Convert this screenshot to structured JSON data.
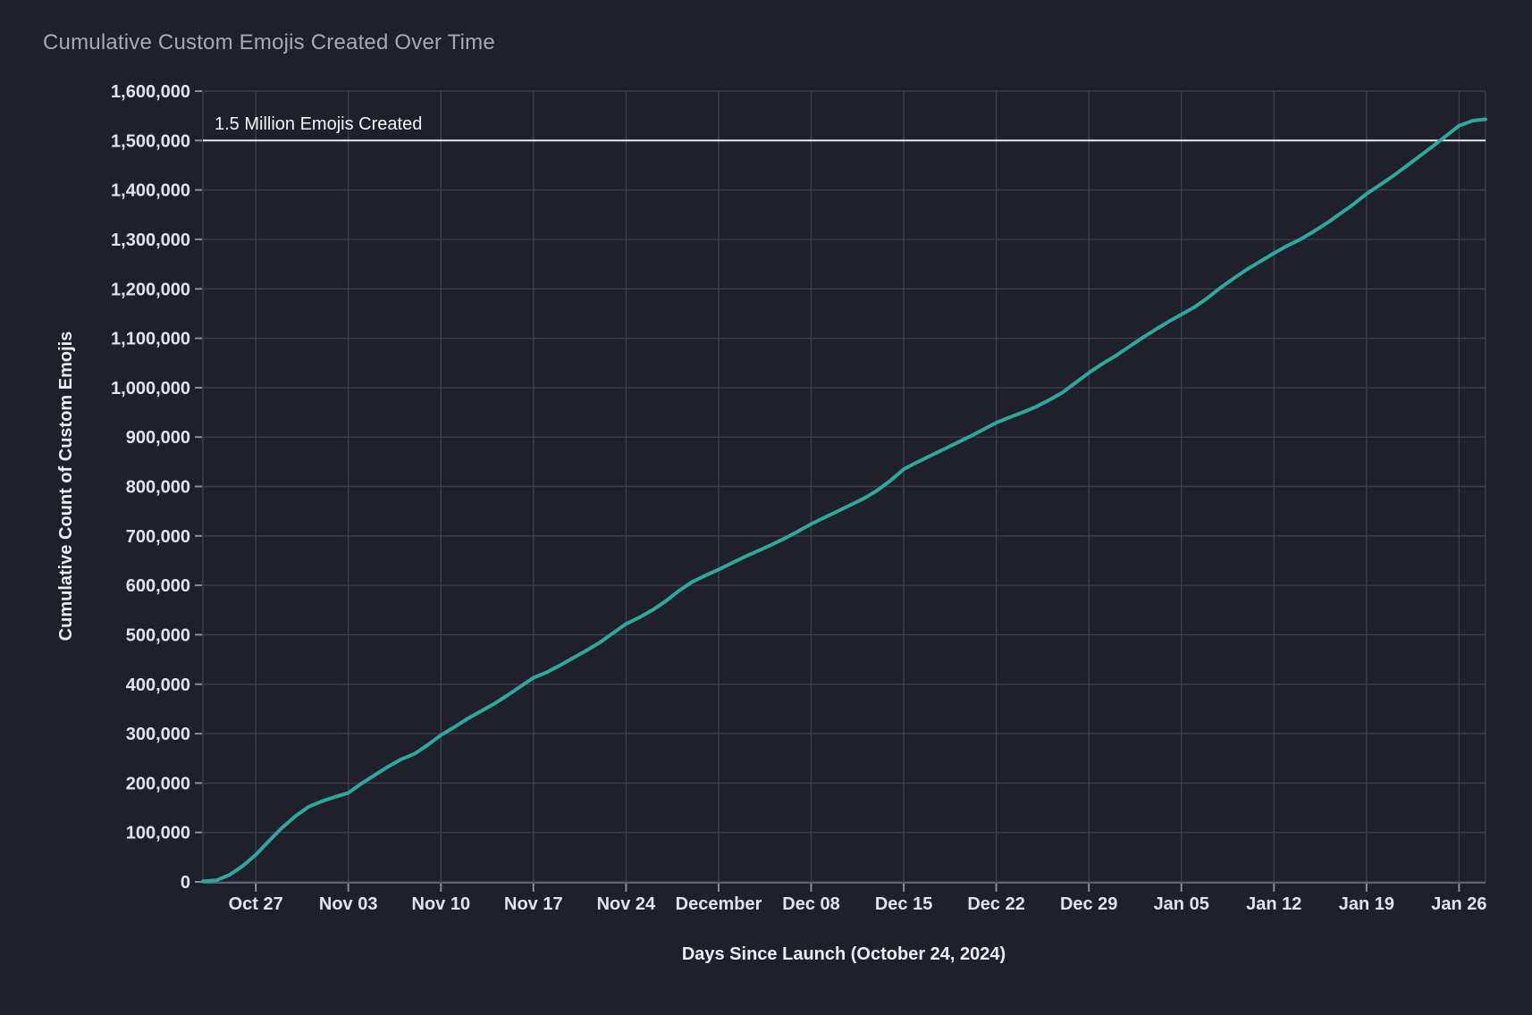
{
  "theme": {
    "background": "#1f202a",
    "grid_color": "#3d3e4c",
    "axis_line_color": "#5f6070",
    "tick_mark_color": "#8d8e99",
    "tick_label_color": "#e2e3ea",
    "axis_title_color": "#edeef4",
    "chart_title_color": "#a7a9b4",
    "annotation_line_color": "#e8eaef",
    "annotation_text_color": "#f3f4f8",
    "series_color": "#2ca89d"
  },
  "chart_data": {
    "type": "line",
    "title": "Cumulative Custom Emojis Created Over Time",
    "xlabel": "Days Since Launch (October 24, 2024)",
    "ylabel": "Cumulative Count of Custom Emojis",
    "legend": false,
    "grid": true,
    "ylim": [
      0,
      1600000
    ],
    "y_tick_step": 100000,
    "y_tick_labels": [
      "0",
      "100,000",
      "200,000",
      "300,000",
      "400,000",
      "500,000",
      "600,000",
      "700,000",
      "800,000",
      "900,000",
      "1,000,000",
      "1,100,000",
      "1,200,000",
      "1,300,000",
      "1,400,000",
      "1,500,000",
      "1,600,000"
    ],
    "xlim_days_since_launch": [
      -1,
      96
    ],
    "x_ticks": [
      {
        "day": 3,
        "label": "Oct 27"
      },
      {
        "day": 10,
        "label": "Nov 03"
      },
      {
        "day": 17,
        "label": "Nov 10"
      },
      {
        "day": 24,
        "label": "Nov 17"
      },
      {
        "day": 31,
        "label": "Nov 24"
      },
      {
        "day": 38,
        "label": "December"
      },
      {
        "day": 45,
        "label": "Dec 08"
      },
      {
        "day": 52,
        "label": "Dec 15"
      },
      {
        "day": 59,
        "label": "Dec 22"
      },
      {
        "day": 66,
        "label": "Dec 29"
      },
      {
        "day": 73,
        "label": "Jan 05"
      },
      {
        "day": 80,
        "label": "Jan 12"
      },
      {
        "day": 87,
        "label": "Jan 19"
      },
      {
        "day": 94,
        "label": "Jan 26"
      }
    ],
    "annotation": {
      "text": "1.5 Million Emojis Created",
      "y": 1500000
    },
    "series": [
      {
        "name": "Cumulative Custom Emojis",
        "color": "#2ca89d",
        "points_day_value": [
          [
            -1,
            1000
          ],
          [
            0,
            3000
          ],
          [
            1,
            14000
          ],
          [
            2,
            32000
          ],
          [
            3,
            55000
          ],
          [
            4,
            83000
          ],
          [
            5,
            110000
          ],
          [
            6,
            133000
          ],
          [
            7,
            152000
          ],
          [
            8,
            163000
          ],
          [
            9,
            172000
          ],
          [
            10,
            180000
          ],
          [
            11,
            199000
          ],
          [
            12,
            216000
          ],
          [
            13,
            233000
          ],
          [
            14,
            248000
          ],
          [
            15,
            259000
          ],
          [
            16,
            277000
          ],
          [
            17,
            297000
          ],
          [
            18,
            313000
          ],
          [
            19,
            330000
          ],
          [
            20,
            345000
          ],
          [
            21,
            360000
          ],
          [
            22,
            377000
          ],
          [
            23,
            395000
          ],
          [
            24,
            413000
          ],
          [
            25,
            424000
          ],
          [
            26,
            438000
          ],
          [
            27,
            453000
          ],
          [
            28,
            468000
          ],
          [
            29,
            484000
          ],
          [
            30,
            503000
          ],
          [
            31,
            522000
          ],
          [
            32,
            535000
          ],
          [
            33,
            550000
          ],
          [
            34,
            568000
          ],
          [
            35,
            589000
          ],
          [
            36,
            607000
          ],
          [
            37,
            620000
          ],
          [
            38,
            632000
          ],
          [
            39,
            645000
          ],
          [
            40,
            658000
          ],
          [
            41,
            670000
          ],
          [
            42,
            682000
          ],
          [
            43,
            695000
          ],
          [
            44,
            709000
          ],
          [
            45,
            724000
          ],
          [
            46,
            737000
          ],
          [
            47,
            750000
          ],
          [
            48,
            763000
          ],
          [
            49,
            776000
          ],
          [
            50,
            792000
          ],
          [
            51,
            812000
          ],
          [
            52,
            835000
          ],
          [
            53,
            849000
          ],
          [
            54,
            862000
          ],
          [
            55,
            875000
          ],
          [
            56,
            888000
          ],
          [
            57,
            901000
          ],
          [
            58,
            915000
          ],
          [
            59,
            929000
          ],
          [
            60,
            940000
          ],
          [
            61,
            950000
          ],
          [
            62,
            961000
          ],
          [
            63,
            975000
          ],
          [
            64,
            990000
          ],
          [
            65,
            1010000
          ],
          [
            66,
            1030000
          ],
          [
            67,
            1048000
          ],
          [
            68,
            1064000
          ],
          [
            69,
            1082000
          ],
          [
            70,
            1100000
          ],
          [
            71,
            1117000
          ],
          [
            72,
            1133000
          ],
          [
            73,
            1148000
          ],
          [
            74,
            1163000
          ],
          [
            75,
            1182000
          ],
          [
            76,
            1203000
          ],
          [
            77,
            1222000
          ],
          [
            78,
            1240000
          ],
          [
            79,
            1256000
          ],
          [
            80,
            1272000
          ],
          [
            81,
            1287000
          ],
          [
            82,
            1300000
          ],
          [
            83,
            1316000
          ],
          [
            84,
            1333000
          ],
          [
            85,
            1352000
          ],
          [
            86,
            1371000
          ],
          [
            87,
            1392000
          ],
          [
            88,
            1410000
          ],
          [
            89,
            1428000
          ],
          [
            90,
            1448000
          ],
          [
            91,
            1468000
          ],
          [
            92,
            1488000
          ],
          [
            93,
            1509000
          ],
          [
            94,
            1530000
          ],
          [
            95,
            1540000
          ],
          [
            96,
            1543000
          ]
        ]
      }
    ]
  }
}
